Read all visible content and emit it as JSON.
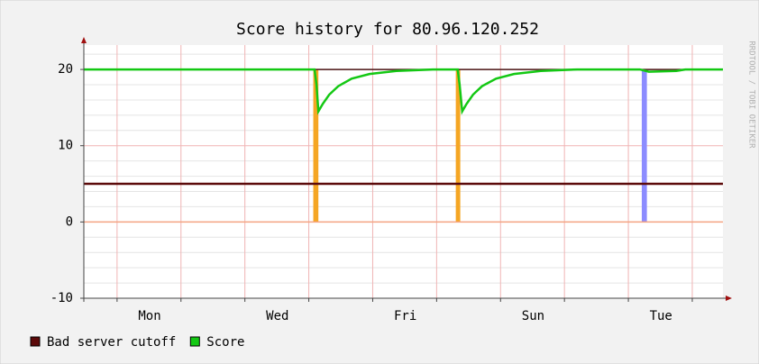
{
  "chart_data": {
    "type": "line",
    "title": "Score history for 80.96.120.252",
    "watermark": "RRDTOOL / TOBI OETIKER",
    "xlim": [
      0,
      10
    ],
    "ylim": [
      -10,
      23.2
    ],
    "yticks": [
      -10,
      0,
      10,
      20
    ],
    "yminor": [
      -8,
      -6,
      -4,
      -2,
      2,
      4,
      6,
      8,
      12,
      14,
      16,
      18,
      22
    ],
    "xticks": [
      {
        "value": 1.03,
        "label": "Mon"
      },
      {
        "value": 3.03,
        "label": "Wed"
      },
      {
        "value": 5.03,
        "label": "Fri"
      },
      {
        "value": 7.03,
        "label": "Sun"
      },
      {
        "value": 9.03,
        "label": "Tue"
      }
    ],
    "xgrid": [
      0.52,
      1.52,
      2.52,
      3.52,
      4.52,
      5.52,
      6.52,
      7.52,
      8.52,
      9.52
    ],
    "grid": true,
    "bands": [
      {
        "x": [
          3.59,
          3.67
        ],
        "value": 20,
        "color": "#f5a623"
      },
      {
        "x": [
          5.82,
          5.89
        ],
        "value": 20,
        "color": "#f5a623"
      },
      {
        "x": [
          8.73,
          8.81
        ],
        "value": 20,
        "color": "#8c8cff"
      }
    ],
    "series": [
      {
        "color": "#f4a582",
        "x": [
          0,
          10
        ],
        "values": [
          0,
          0
        ]
      },
      {
        "name": "Bad server cutoff",
        "color": "#5c0a0a",
        "x": [
          0,
          10
        ],
        "values": [
          5,
          5
        ]
      },
      {
        "color": "#4a1515",
        "x": [
          3.61,
          10
        ],
        "values": [
          20,
          20
        ]
      },
      {
        "name": "Score",
        "color": "#14c814",
        "x": [
          0,
          3.61,
          3.64,
          3.67,
          3.74,
          3.84,
          3.98,
          4.19,
          4.47,
          4.89,
          5.46,
          5.85,
          5.88,
          5.92,
          5.99,
          6.09,
          6.23,
          6.45,
          6.73,
          7.15,
          7.72,
          8.7,
          8.84,
          9.27,
          9.41,
          10
        ],
        "values": [
          20,
          20,
          18,
          14.5,
          15.5,
          16.7,
          17.8,
          18.8,
          19.4,
          19.8,
          20,
          20,
          18,
          14.5,
          15.5,
          16.7,
          17.8,
          18.8,
          19.4,
          19.8,
          20,
          20,
          19.7,
          19.8,
          20,
          20
        ]
      }
    ]
  }
}
